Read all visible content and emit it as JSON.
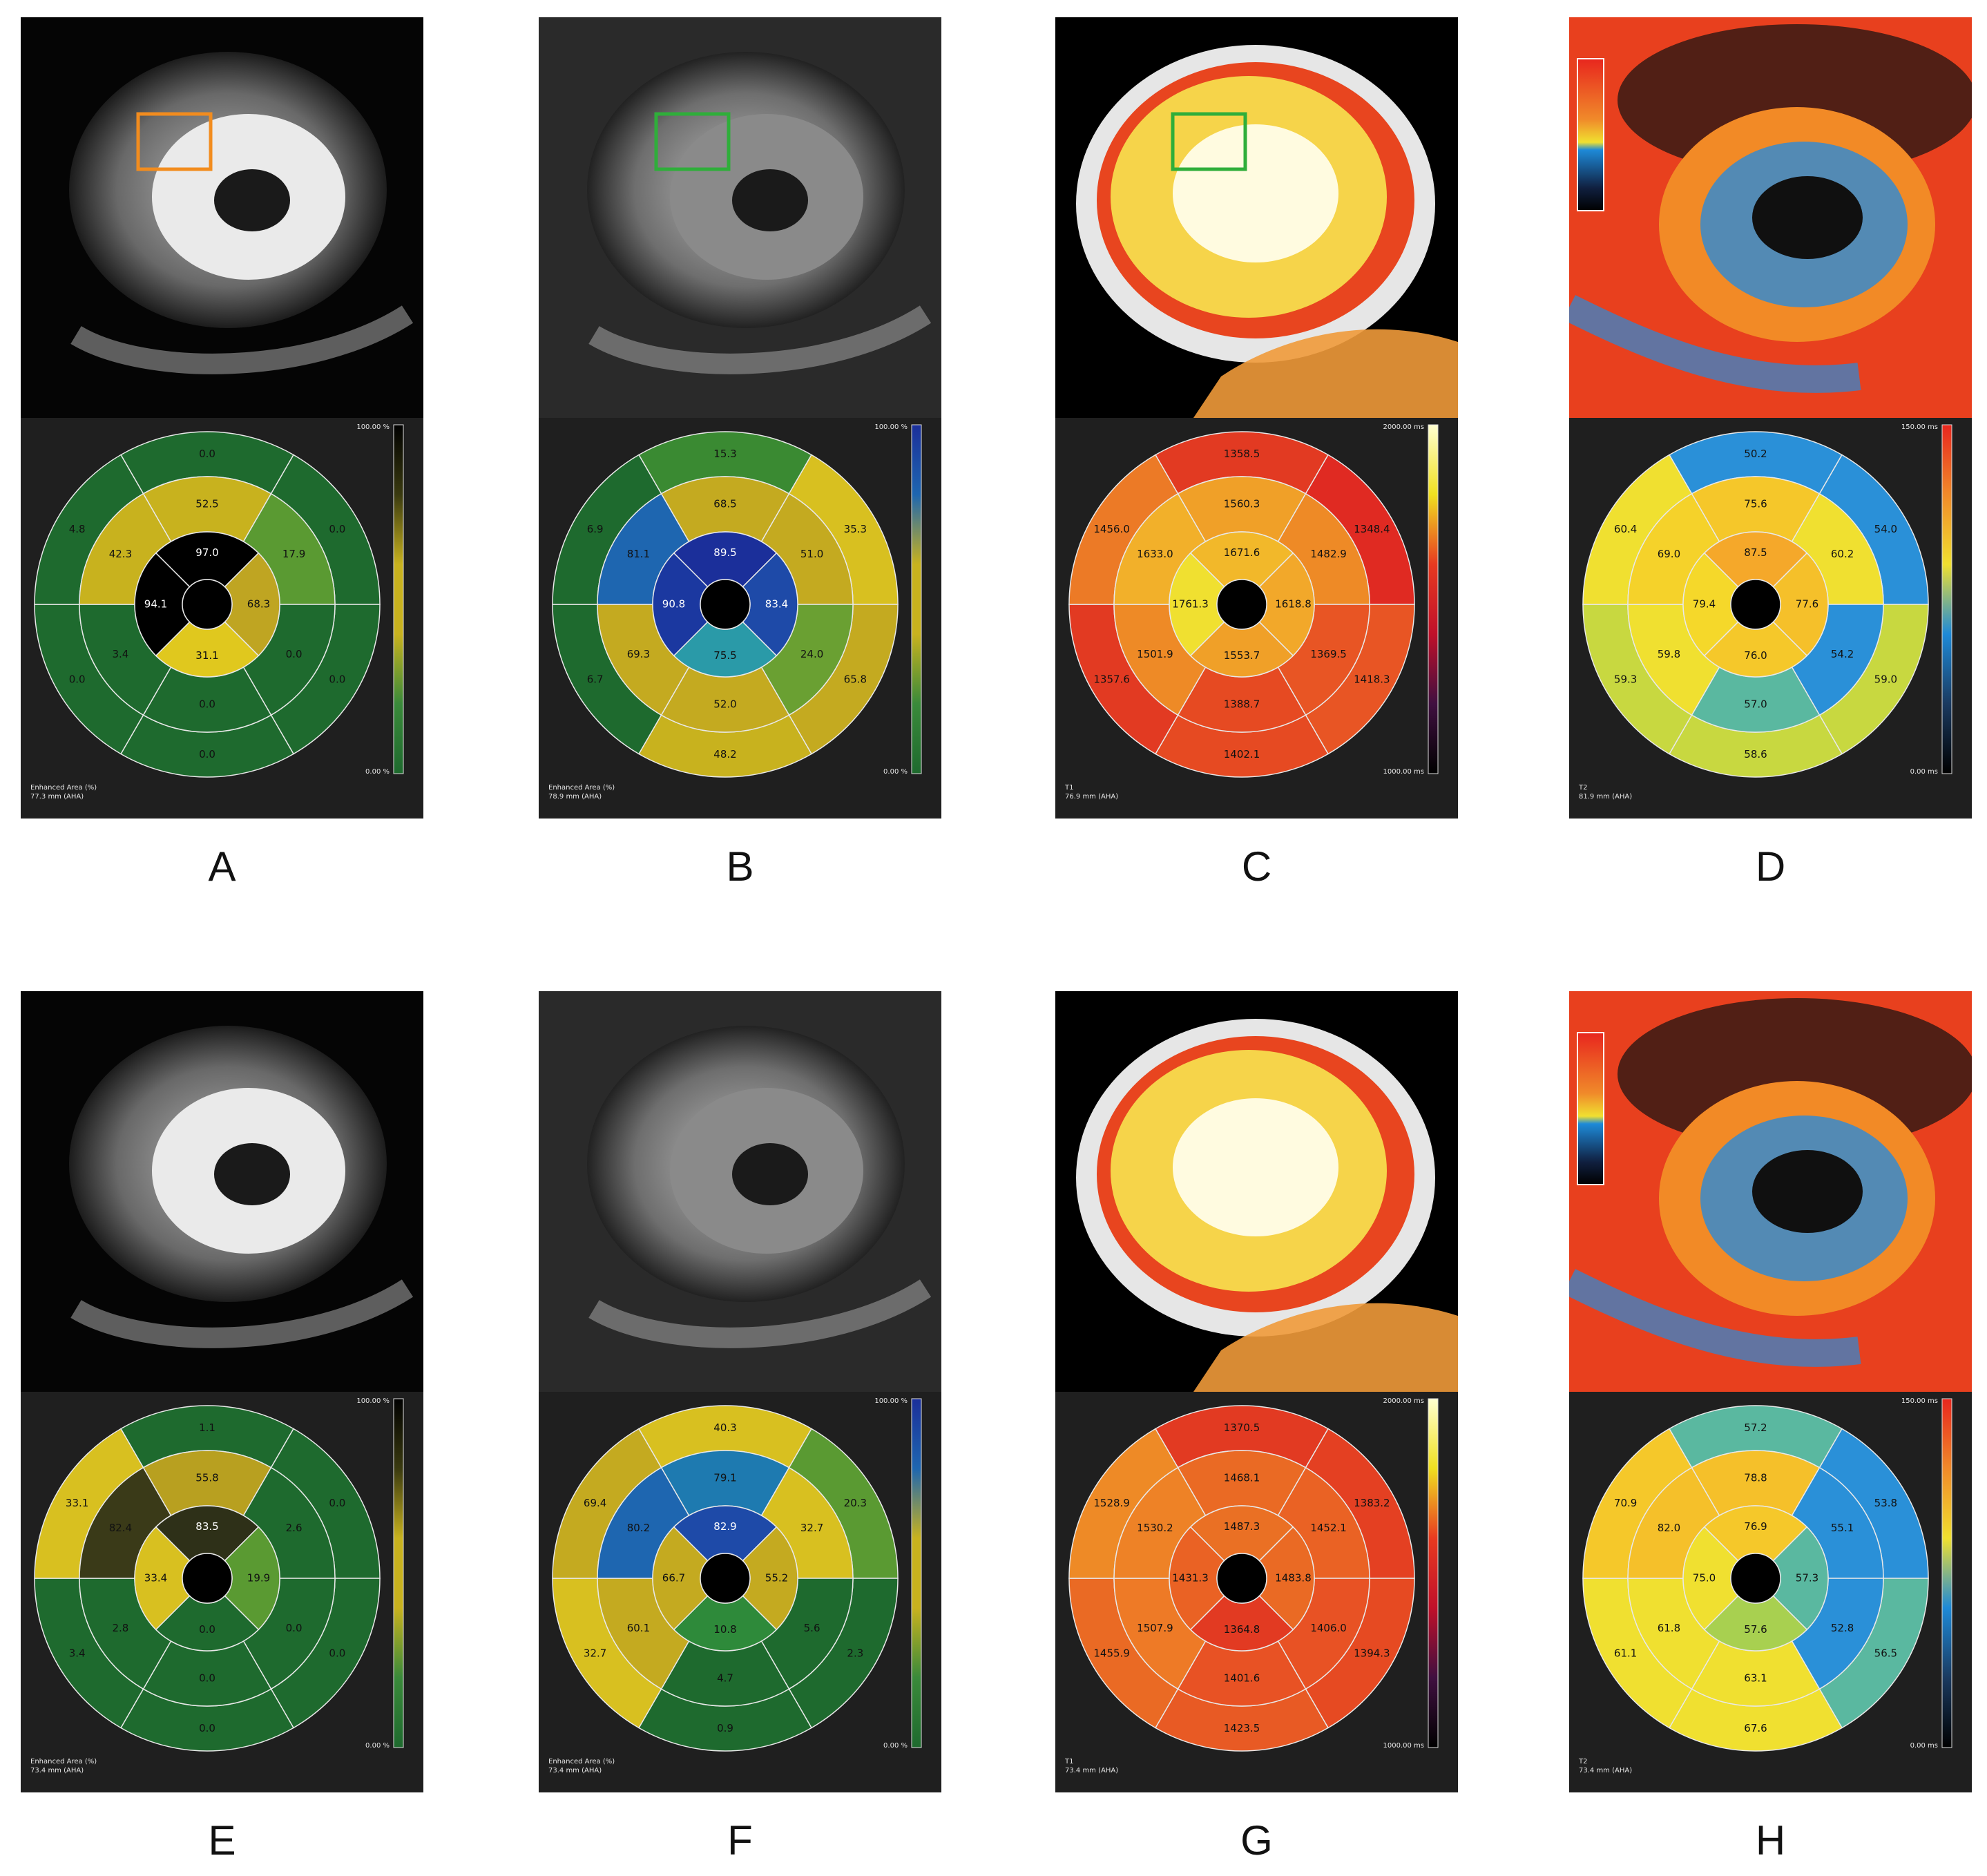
{
  "panels": [
    {
      "letter": "A",
      "image": "grayscale-lge",
      "roi": {
        "color": "#f28c1e"
      },
      "colorbar": {
        "top": "100.00 %",
        "bottom": "0.00 %",
        "stops": [
          "#000000",
          "#3a3a10",
          "#c8b21e",
          "#c8b21e",
          "#3a8a3a",
          "#1e6a2e"
        ]
      },
      "footer": [
        "Enhanced Area (%)",
        "77.3 mm (AHA)"
      ],
      "ring_outer": [
        "0.0",
        "0.0",
        "0.0",
        "0.0",
        "0.0",
        "4.8"
      ],
      "ring_mid": [
        "52.5",
        "17.9",
        "0.0",
        "0.0",
        "3.4",
        "42.3"
      ],
      "ring_inner": [
        "97.0",
        "68.3",
        "31.1",
        "94.1"
      ],
      "colors_outer": [
        "#1e6a2e",
        "#1e6a2e",
        "#1e6a2e",
        "#1e6a2e",
        "#1e6a2e",
        "#1e6a2e"
      ],
      "colors_mid": [
        "#c8b21e",
        "#5a9a32",
        "#1e6a2e",
        "#1e6a2e",
        "#1e6a2e",
        "#c8b21e"
      ],
      "colors_inner": [
        "#000000",
        "#bfa522",
        "#e0c81e",
        "#000000"
      ],
      "text_light_inner": [
        true,
        false,
        false,
        true
      ]
    },
    {
      "letter": "B",
      "image": "grayscale-t2",
      "roi": {
        "color": "#2fae3a"
      },
      "colorbar": {
        "top": "100.00 %",
        "bottom": "0.00 %",
        "stops": [
          "#1b2f9a",
          "#1e66b0",
          "#c8b21e",
          "#c8b21e",
          "#3a8a3a",
          "#1e6a2e"
        ]
      },
      "footer": [
        "Enhanced Area (%)",
        "78.9 mm (AHA)"
      ],
      "ring_outer": [
        "15.3",
        "35.3",
        "65.8",
        "48.2",
        "6.7",
        "6.9"
      ],
      "ring_mid": [
        "68.5",
        "51.0",
        "24.0",
        "52.0",
        "69.3",
        "81.1"
      ],
      "ring_inner": [
        "89.5",
        "83.4",
        "75.5",
        "90.8"
      ],
      "colors_outer": [
        "#3a8a32",
        "#d8c020",
        "#c4aa20",
        "#c8b21e",
        "#1e6a2e",
        "#1e6a2e"
      ],
      "colors_mid": [
        "#c4aa20",
        "#c4aa20",
        "#6aa032",
        "#c4aa20",
        "#c4aa20",
        "#1e66b0"
      ],
      "colors_inner": [
        "#1b2f9a",
        "#1e4aa8",
        "#2a9aa8",
        "#1b38a0"
      ],
      "text_light_inner": [
        true,
        true,
        false,
        true
      ]
    },
    {
      "letter": "C",
      "image": "t1-map",
      "roi": {
        "color": "#2fae3a"
      },
      "colorbar": {
        "top": "2000.00 ms",
        "bottom": "1000.00 ms",
        "stops": [
          "#ffffd0",
          "#f0e020",
          "#e83a20",
          "#c0102a",
          "#401040",
          "#000000"
        ]
      },
      "footer": [
        "T1",
        "76.9 mm (AHA)"
      ],
      "ring_outer": [
        "1358.5",
        "1348.4",
        "1418.3",
        "1402.1",
        "1357.6",
        "1456.0"
      ],
      "ring_mid": [
        "1560.3",
        "1482.9",
        "1369.5",
        "1388.7",
        "1501.9",
        "1633.0"
      ],
      "ring_inner": [
        "1671.6",
        "1618.8",
        "1553.7",
        "1761.3"
      ],
      "colors_outer": [
        "#e23a22",
        "#e02a22",
        "#e85524",
        "#e64a22",
        "#e23a22",
        "#ec7a26"
      ],
      "colors_mid": [
        "#f0a028",
        "#ee8a26",
        "#e85524",
        "#e64a22",
        "#ee8a26",
        "#f2b02a"
      ],
      "colors_inner": [
        "#f2b82a",
        "#f2a82a",
        "#f0a028",
        "#f0e030"
      ],
      "text_light_inner": [
        false,
        false,
        false,
        false
      ]
    },
    {
      "letter": "D",
      "image": "t2-map",
      "roi": null,
      "colorbar": {
        "top": "150.00 ms",
        "bottom": "0.00 ms",
        "stops": [
          "#e8261e",
          "#f08a2a",
          "#f0e030",
          "#1e8ad8",
          "#1a3a60",
          "#000000"
        ]
      },
      "footer": [
        "T2",
        "81.9 mm (AHA)"
      ],
      "ring_outer": [
        "50.2",
        "54.0",
        "59.0",
        "58.6",
        "59.3",
        "60.4"
      ],
      "ring_mid": [
        "75.6",
        "60.2",
        "54.2",
        "57.0",
        "59.8",
        "69.0"
      ],
      "ring_inner": [
        "87.5",
        "77.6",
        "76.0",
        "79.4"
      ],
      "colors_outer": [
        "#2a90d8",
        "#2a90d8",
        "#c8d840",
        "#c8d840",
        "#c8d840",
        "#f0e030"
      ],
      "colors_mid": [
        "#f5c72a",
        "#f0e030",
        "#2a90d8",
        "#5ab8a0",
        "#f0e030",
        "#f5d22a"
      ],
      "colors_inner": [
        "#f5a82a",
        "#f5c02a",
        "#f5c82a",
        "#f5d82a"
      ],
      "text_light_inner": [
        false,
        false,
        false,
        false
      ]
    },
    {
      "letter": "E",
      "image": "grayscale-lge",
      "roi": null,
      "colorbar": {
        "top": "100.00 %",
        "bottom": "0.00 %",
        "stops": [
          "#000000",
          "#3a3a10",
          "#c8b21e",
          "#c8b21e",
          "#3a8a3a",
          "#1e6a2e"
        ]
      },
      "footer": [
        "Enhanced Area (%)",
        "73.4 mm (AHA)"
      ],
      "ring_outer": [
        "1.1",
        "0.0",
        "0.0",
        "0.0",
        "3.4",
        "33.1"
      ],
      "ring_mid": [
        "55.8",
        "2.6",
        "0.0",
        "0.0",
        "2.8",
        "82.4"
      ],
      "ring_inner": [
        "83.5",
        "19.9",
        "0.0",
        "33.4"
      ],
      "colors_outer": [
        "#1e6a2e",
        "#1e6a2e",
        "#1e6a2e",
        "#1e6a2e",
        "#1e6a2e",
        "#d8c020"
      ],
      "colors_mid": [
        "#b8a020",
        "#1e6a2e",
        "#1e6a2e",
        "#1e6a2e",
        "#1e6a2e",
        "#3a3a18"
      ],
      "colors_inner": [
        "#2e3018",
        "#5a9a32",
        "#1e6a2e",
        "#d8c020"
      ],
      "text_light_inner": [
        true,
        false,
        false,
        false
      ]
    },
    {
      "letter": "F",
      "image": "grayscale-t2",
      "roi": null,
      "colorbar": {
        "top": "100.00 %",
        "bottom": "0.00 %",
        "stops": [
          "#1b2f9a",
          "#1e66b0",
          "#c8b21e",
          "#c8b21e",
          "#3a8a3a",
          "#1e6a2e"
        ]
      },
      "footer": [
        "Enhanced Area (%)",
        "73.4 mm (AHA)"
      ],
      "ring_outer": [
        "40.3",
        "20.3",
        "2.3",
        "0.9",
        "32.7",
        "69.4"
      ],
      "ring_mid": [
        "79.1",
        "32.7",
        "5.6",
        "4.7",
        "60.1",
        "80.2"
      ],
      "ring_inner": [
        "82.9",
        "55.2",
        "10.8",
        "66.7"
      ],
      "colors_outer": [
        "#d8c020",
        "#5a9a32",
        "#1e6a2e",
        "#1e6a2e",
        "#d8c020",
        "#c4aa20"
      ],
      "colors_mid": [
        "#1e7ab0",
        "#d8c020",
        "#1e6a2e",
        "#1e6a2e",
        "#c4aa20",
        "#1e66b0"
      ],
      "colors_inner": [
        "#1e4aa8",
        "#c4aa20",
        "#2e8a3a",
        "#c4aa20"
      ],
      "text_light_inner": [
        true,
        false,
        false,
        false
      ]
    },
    {
      "letter": "G",
      "image": "t1-map",
      "roi": null,
      "colorbar": {
        "top": "2000.00 ms",
        "bottom": "1000.00 ms",
        "stops": [
          "#ffffd0",
          "#f0e020",
          "#e83a20",
          "#c0102a",
          "#401040",
          "#000000"
        ]
      },
      "footer": [
        "T1",
        "73.4 mm (AHA)"
      ],
      "ring_outer": [
        "1370.5",
        "1383.2",
        "1394.3",
        "1423.5",
        "1455.9",
        "1528.9"
      ],
      "ring_mid": [
        "1468.1",
        "1452.1",
        "1406.0",
        "1401.6",
        "1507.9",
        "1530.2"
      ],
      "ring_inner": [
        "1487.3",
        "1483.8",
        "1364.8",
        "1431.3"
      ],
      "colors_outer": [
        "#e23a22",
        "#e44022",
        "#e64a22",
        "#e85a24",
        "#ea6a24",
        "#ee8a26"
      ],
      "colors_mid": [
        "#ea6a24",
        "#ea6224",
        "#e85224",
        "#e85224",
        "#ee7a26",
        "#ee8226"
      ],
      "colors_inner": [
        "#ea7024",
        "#ea6a24",
        "#e23a22",
        "#ea6224"
      ],
      "text_light_inner": [
        false,
        false,
        false,
        false
      ]
    },
    {
      "letter": "H",
      "image": "t2-map",
      "roi": null,
      "colorbar": {
        "top": "150.00 ms",
        "bottom": "0.00 ms",
        "stops": [
          "#e8261e",
          "#f08a2a",
          "#f0e030",
          "#1e8ad8",
          "#1a3a60",
          "#000000"
        ]
      },
      "footer": [
        "T2",
        "73.4 mm (AHA)"
      ],
      "ring_outer": [
        "57.2",
        "53.8",
        "56.5",
        "67.6",
        "61.1",
        "70.9"
      ],
      "ring_mid": [
        "78.8",
        "55.1",
        "52.8",
        "63.1",
        "61.8",
        "82.0"
      ],
      "ring_inner": [
        "76.9",
        "57.3",
        "57.6",
        "75.0"
      ],
      "colors_outer": [
        "#5ab8a0",
        "#2a90d8",
        "#5ab8a0",
        "#f0e030",
        "#f0e030",
        "#f5c82a"
      ],
      "colors_mid": [
        "#f5c02a",
        "#2a90d8",
        "#2a90d8",
        "#f0e030",
        "#f0e030",
        "#f5c02a"
      ],
      "colors_inner": [
        "#f5c82a",
        "#5ab8a0",
        "#a8d050",
        "#f0e030"
      ],
      "text_light_inner": [
        false,
        false,
        false,
        false
      ]
    }
  ]
}
